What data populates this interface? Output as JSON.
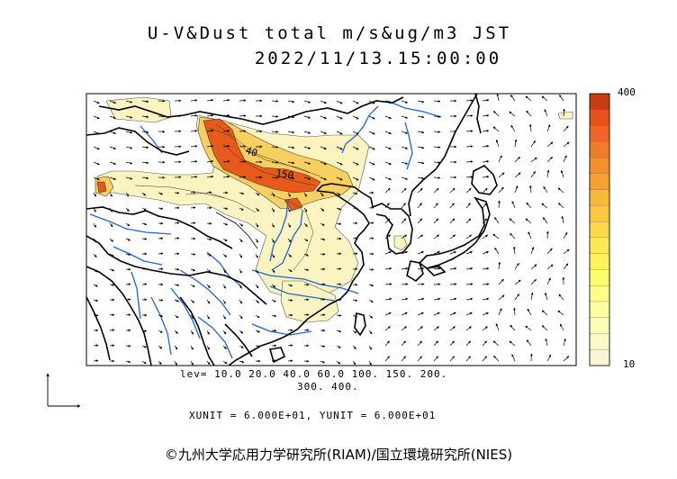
{
  "title": {
    "line1": "U-V&Dust total m/s&ug/m3 JST",
    "line2": "2022/11/13.15:00:00"
  },
  "contour_labels": [
    "40",
    "150"
  ],
  "levels_line1": "lev= 10.0 20.0 40.0 60.0 100. 150. 200.",
  "levels_line2": "300. 400.",
  "levels": [
    10,
    20,
    40,
    60,
    100,
    150,
    200,
    300,
    400
  ],
  "units_line": "XUNIT = 6.000E+01, YUNIT = 6.000E+01",
  "colorbar": {
    "max_label": "400",
    "min_label": "10",
    "colors": [
      "#c83c14",
      "#e8501c",
      "#f06428",
      "#f07c28",
      "#f4902c",
      "#f8a030",
      "#f8b838",
      "#fcc840",
      "#fcd848",
      "#fce850",
      "#fcf458",
      "#fcfc6c",
      "#fcfc88",
      "#fcfca0",
      "#fcfcb4",
      "#fcf8c8",
      "#fcf4d4"
    ]
  },
  "colors": {
    "coast": "#000000",
    "rivers": "#1e64dc",
    "dust_low": "#fcf4c0",
    "dust_mid": "#f8d060",
    "dust_high": "#e85a1c"
  },
  "copyright": "©九州大学応用力学研究所(RIAM)/国立環境研究所(NIES)"
}
